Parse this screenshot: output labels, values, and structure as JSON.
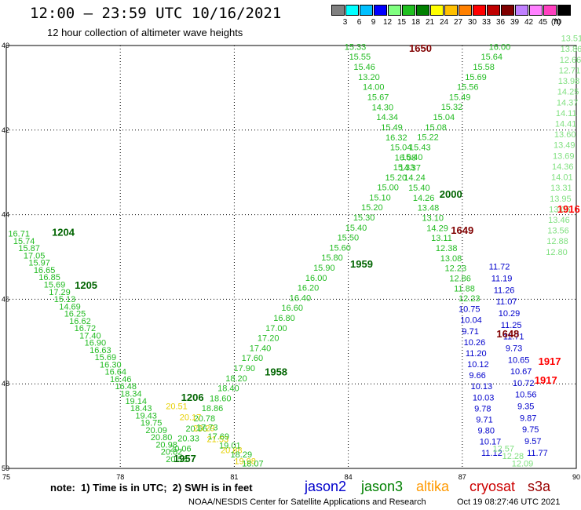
{
  "header": {
    "title": "12:00 – 23:59 UTC 10/16/2021",
    "subtitle": "12 hour collection of altimeter wave heights"
  },
  "legend": {
    "unit": "(ft)",
    "bins": [
      {
        "label": "3",
        "color": "#808080"
      },
      {
        "label": "6",
        "color": "#00ffff"
      },
      {
        "label": "9",
        "color": "#00c0ff"
      },
      {
        "label": "12",
        "color": "#0000ff"
      },
      {
        "label": "15",
        "color": "#80ff80"
      },
      {
        "label": "18",
        "color": "#20c020"
      },
      {
        "label": "21",
        "color": "#008000"
      },
      {
        "label": "24",
        "color": "#ffff00"
      },
      {
        "label": "27",
        "color": "#ffc000"
      },
      {
        "label": "30",
        "color": "#ff8000"
      },
      {
        "label": "33",
        "color": "#ff0000"
      },
      {
        "label": "36",
        "color": "#c00000"
      },
      {
        "label": "39",
        "color": "#800000"
      },
      {
        "label": "42",
        "color": "#c080ff"
      },
      {
        "label": "45",
        "color": "#ff80ff"
      },
      {
        "label": "70",
        "color": "#ff40c0"
      },
      {
        "label": "",
        "color": "#000000"
      }
    ]
  },
  "map": {
    "lon_ticks": [
      "75",
      "78",
      "81",
      "84",
      "87",
      "90"
    ],
    "lat_ticks": [
      "40",
      "42",
      "44",
      "46",
      "48",
      "50"
    ]
  },
  "tracks": [
    {
      "name": "jason3-desc",
      "color": "#22bb22",
      "values": [
        "16.71",
        "15.74",
        "15.87",
        "17.05",
        "15.97",
        "16.65",
        "16.85",
        "15.69",
        "17.29",
        "15.13",
        "14.69",
        "16.25",
        "16.62",
        "16.72",
        "17.40",
        "16.90",
        "16.63",
        "15.69",
        "16.30",
        "16.64",
        "16.46",
        "16.48",
        "18.34",
        "19.14",
        "18.43",
        "19.43",
        "19.75",
        "20.09",
        "20.80",
        "20.98",
        "20.82",
        "20.58"
      ],
      "lat0": 44.52,
      "lat1": 49.85,
      "lon0": 75.05,
      "lon1": 79.2
    },
    {
      "name": "jason3-asc",
      "color": "#22bb22",
      "values": [
        "20.06",
        "20.33",
        "20.56",
        "20.78",
        "18.86",
        "18.60",
        "18.40",
        "18.20",
        "17.90",
        "17.60",
        "17.40",
        "17.20",
        "17.00",
        "16.80",
        "16.60",
        "16.40",
        "16.20",
        "16.00",
        "15.90",
        "15.80",
        "15.60",
        "15.50",
        "15.40",
        "15.30",
        "15.20",
        "15.10",
        "15.00",
        "15.20",
        "15.33",
        "15.40",
        "15.43",
        "15.22",
        "15.08",
        "15.04",
        "15.32",
        "15.49",
        "15.56",
        "15.69",
        "15.58",
        "15.64",
        "16.00"
      ],
      "lat0": 49.6,
      "lat1": 40.1,
      "lon0": 79.3,
      "lon1": 87.7
    },
    {
      "name": "jason3-desc2",
      "color": "#22bb22",
      "values": [
        "15.33",
        "15.55",
        "15.46",
        "13.20",
        "14.00",
        "15.67",
        "14.30",
        "14.34",
        "15.49",
        "16.32",
        "15.04",
        "16.08",
        "14.37",
        "14.24",
        "15.40",
        "14.26",
        "13.48",
        "13.10",
        "14.29",
        "13.11",
        "12.38",
        "13.08",
        "12.23",
        "12.86",
        "11.88",
        "12.23"
      ],
      "lat0": 40.1,
      "lat1": 46.05,
      "lon0": 83.9,
      "lon1": 86.9
    },
    {
      "name": "altika-yellow",
      "color": "#e6d000",
      "values": [
        "20.51",
        "20.17",
        "20.29",
        "21.53",
        "20.88",
        "19.98"
      ],
      "lat0": 48.6,
      "lat1": 49.9,
      "lon0": 79.2,
      "lon1": 81.0
    },
    {
      "name": "jason3-sw",
      "color": "#22bb22",
      "values": [
        "17.73",
        "17.69",
        "19.01",
        "18.29",
        "18.07"
      ],
      "lat0": 49.1,
      "lat1": 49.95,
      "lon0": 80.0,
      "lon1": 81.2
    },
    {
      "name": "jason2-blue",
      "color": "#0000cc",
      "values": [
        "10.75",
        "10.04",
        "9.71",
        "10.26",
        "11.20",
        "10.12",
        "9.66",
        "10.13",
        "10.03",
        "9.78",
        "9.71",
        "9.80",
        "10.17",
        "11.12"
      ],
      "lat0": 46.3,
      "lat1": 49.7,
      "lon0": 86.9,
      "lon1": 87.5
    },
    {
      "name": "jason2-blue2",
      "color": "#0000cc",
      "values": [
        "11.72",
        "11.19",
        "11.26",
        "11.07",
        "10.29",
        "11.25",
        "11.71",
        "9.73",
        "10.65",
        "10.67",
        "10.72",
        "10.56",
        "9.35",
        "9.87",
        "9.75",
        "9.57",
        "11.77"
      ],
      "lat0": 45.3,
      "lat1": 49.7,
      "lon0": 87.7,
      "lon1": 88.7
    },
    {
      "name": "jason3-ne",
      "color": "#80e080",
      "values": [
        "13.51",
        "13.86",
        "12.66",
        "12.71",
        "13.98",
        "14.25",
        "14.37",
        "14.11",
        "14.41",
        "13.60",
        "13.49",
        "13.69",
        "14.36",
        "14.01",
        "13.31",
        "13.95",
        "13.05",
        "13.46",
        "13.56",
        "12.88",
        "12.80"
      ],
      "lat0": 39.9,
      "lat1": 44.95,
      "lon0": 89.6,
      "lon1": 89.2
    },
    {
      "name": "jason3-se",
      "color": "#80e080",
      "values": [
        "12.57",
        "12.28",
        "12.09"
      ],
      "lat0": 49.6,
      "lat1": 49.95,
      "lon0": 87.8,
      "lon1": 88.3
    }
  ],
  "passes": [
    {
      "label": "1650",
      "color": "#800000",
      "lat": 40.15,
      "lon": 85.6
    },
    {
      "label": "2000",
      "color": "#006400",
      "lat": 43.6,
      "lon": 86.4
    },
    {
      "label": "1649",
      "color": "#800000",
      "lat": 44.45,
      "lon": 86.7
    },
    {
      "label": "1204",
      "color": "#006400",
      "lat": 44.5,
      "lon": 76.2
    },
    {
      "label": "1205",
      "color": "#006400",
      "lat": 45.75,
      "lon": 76.8
    },
    {
      "label": "1959",
      "color": "#006400",
      "lat": 45.25,
      "lon": 84.05
    },
    {
      "label": "1958",
      "color": "#006400",
      "lat": 47.8,
      "lon": 81.8
    },
    {
      "label": "1206",
      "color": "#006400",
      "lat": 48.4,
      "lon": 79.6
    },
    {
      "label": "1957",
      "color": "#006400",
      "lat": 49.85,
      "lon": 79.4
    },
    {
      "label": "1648",
      "color": "#800000",
      "lat": 46.9,
      "lon": 87.9
    },
    {
      "label": "1916",
      "color": "#ff0000",
      "lat": 43.95,
      "lon": 89.5
    },
    {
      "label": "1917",
      "color": "#ff0000",
      "lat": 47.55,
      "lon": 89.0
    },
    {
      "label": "1917",
      "color": "#ff0000",
      "lat": 48.0,
      "lon": 88.9
    }
  ],
  "footer": {
    "note": "note:  1) Time is in UTC;  2) SWH is in feet",
    "satellites": [
      {
        "label": "jason2",
        "color": "#0000cc"
      },
      {
        "label": "jason3",
        "color": "#008000"
      },
      {
        "label": "altika",
        "color": "#ff9900"
      },
      {
        "label": "cryosat",
        "color": "#cc0000"
      },
      {
        "label": "s3a",
        "color": "#990000"
      }
    ],
    "credit": "NOAA/NESDIS Center for Satellite Applications and Research",
    "timestamp": "Oct 19 08:27:46 UTC 2021"
  }
}
